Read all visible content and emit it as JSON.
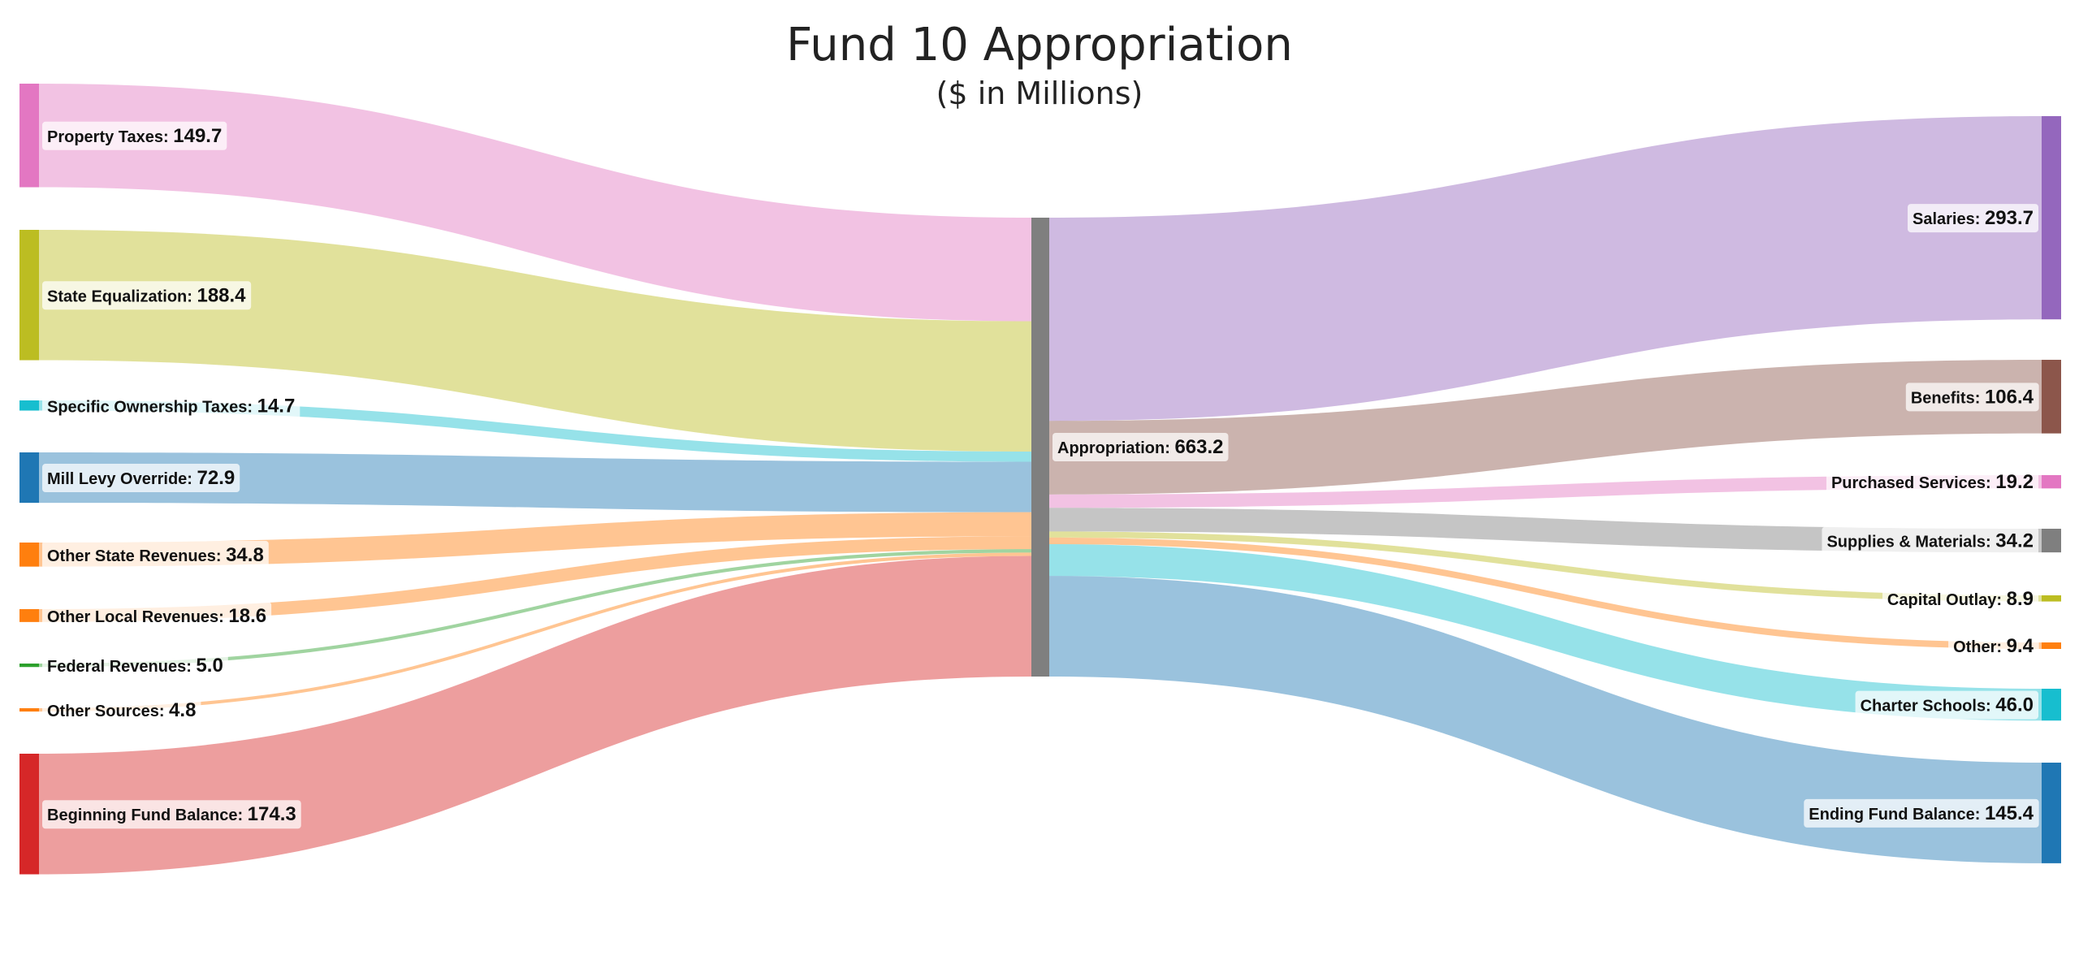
{
  "chart_data": {
    "type": "sankey",
    "title": "Fund 10 Appropriation",
    "subtitle": "($ in Millions)",
    "center": {
      "name": "Appropriation",
      "value": 663.2,
      "color": "#7f7f7f"
    },
    "sources": [
      {
        "name": "Property Taxes",
        "value": 149.7,
        "color": "#e377c2"
      },
      {
        "name": "State Equalization",
        "value": 188.4,
        "color": "#bcbd22"
      },
      {
        "name": "Specific Ownership Taxes",
        "value": 14.7,
        "color": "#17becf"
      },
      {
        "name": "Mill Levy Override",
        "value": 72.9,
        "color": "#1f77b4"
      },
      {
        "name": "Other State Revenues",
        "value": 34.8,
        "color": "#ff7f0e"
      },
      {
        "name": "Other Local Revenues",
        "value": 18.6,
        "color": "#ff7f0e"
      },
      {
        "name": "Federal Revenues",
        "value": 5.0,
        "color": "#2ca02c"
      },
      {
        "name": "Other Sources",
        "value": 4.8,
        "color": "#ff7f0e"
      },
      {
        "name": "Beginning Fund Balance",
        "value": 174.3,
        "color": "#d62728"
      }
    ],
    "targets": [
      {
        "name": "Salaries",
        "value": 293.7,
        "color": "#9467bd"
      },
      {
        "name": "Benefits",
        "value": 106.4,
        "color": "#8c564b"
      },
      {
        "name": "Purchased Services",
        "value": 19.2,
        "color": "#e377c2"
      },
      {
        "name": "Supplies & Materials",
        "value": 34.2,
        "color": "#7f7f7f"
      },
      {
        "name": "Capital Outlay",
        "value": 8.9,
        "color": "#bcbd22"
      },
      {
        "name": "Other",
        "value": 9.4,
        "color": "#ff7f0e"
      },
      {
        "name": "Charter Schools",
        "value": 46.0,
        "color": "#17becf"
      },
      {
        "name": "Ending Fund Balance",
        "value": 145.4,
        "color": "#1f77b4"
      }
    ]
  }
}
